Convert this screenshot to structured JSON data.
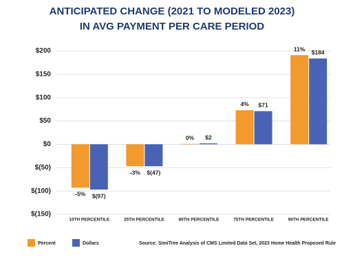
{
  "chart_data": {
    "type": "bar",
    "title": [
      "ANTICIPATED CHANGE (2021 TO MODELED 2023)",
      "IN AVG PAYMENT PER CARE PERIOD"
    ],
    "categories": [
      "10TH PERCENTILE",
      "25TH PERCENTILE",
      "60TH PERCENTILE",
      "75TH PERCENTILE",
      "90TH PERCENTILE"
    ],
    "series": [
      {
        "name": "Percent",
        "color": "#f29a2e",
        "values": [
          -93,
          -47,
          1,
          73,
          191
        ],
        "percent_labels": [
          "-5%",
          "-3%",
          "0%",
          "4%",
          "11%"
        ]
      },
      {
        "name": "Dollars",
        "color": "#4a62b4",
        "values": [
          -97,
          -47,
          2,
          71,
          184
        ],
        "value_labels": [
          "$(97)",
          "$(47)",
          "$2",
          "$71",
          "$184"
        ]
      }
    ],
    "ylim": [
      -150,
      200
    ],
    "yticks": [
      {
        "value": -150,
        "label": "$(150)"
      },
      {
        "value": -100,
        "label": "$(100)"
      },
      {
        "value": -50,
        "label": "$(50)"
      },
      {
        "value": 0,
        "label": "$0"
      },
      {
        "value": 50,
        "label": "$50"
      },
      {
        "value": 100,
        "label": "$100"
      },
      {
        "value": 150,
        "label": "$150"
      },
      {
        "value": 200,
        "label": "$200"
      }
    ],
    "grid": true,
    "legend": "bottom-left",
    "source": "Source: SimiTree Analysis of CMS Limited Data Set, 2023 Home Health Proposed Rule"
  }
}
